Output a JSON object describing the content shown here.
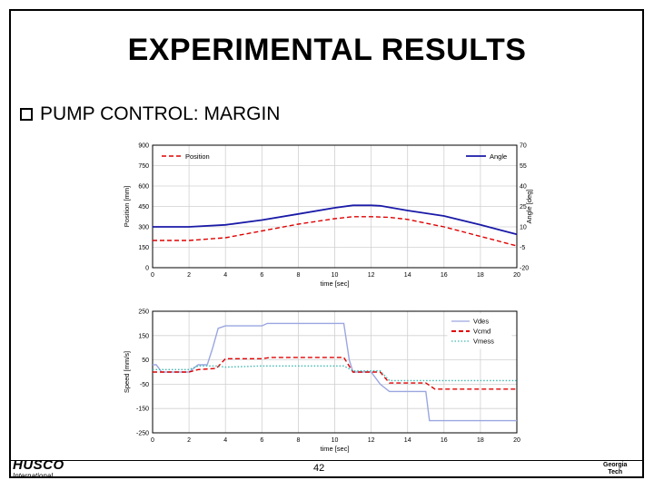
{
  "slide": {
    "title": "EXPERIMENTAL RESULTS",
    "bullet": "PUMP CONTROL: MARGIN",
    "page_number": "42",
    "logo_left_brand": "HUSCO",
    "logo_left_sub": "International",
    "logo_right_line1": "Georgia",
    "logo_right_line2": "Tech"
  },
  "colors": {
    "red_dashed": "#e00000",
    "blue": "#1a1aa8",
    "light_blue": "#9aa6e0",
    "cyan": "#40b8b0",
    "grid": "#d0d0d0"
  },
  "chart_data": [
    {
      "type": "line",
      "xlabel": "time [sec]",
      "ylabel": "Position [mm]",
      "y2label": "Angle [deg]",
      "xlim": [
        0,
        20
      ],
      "ylim": [
        0,
        900
      ],
      "y2lim": [
        -20,
        70
      ],
      "xticks": [
        "0",
        "2",
        "4",
        "6",
        "8",
        "10",
        "12",
        "14",
        "16",
        "18",
        "20"
      ],
      "yticks": [
        "0",
        "150",
        "300",
        "450",
        "600",
        "750",
        "900"
      ],
      "y2ticks": [
        "-20",
        "-5",
        "10",
        "25",
        "40",
        "55",
        "70"
      ],
      "grid": true,
      "series": [
        {
          "name": "Position",
          "axis": "left",
          "style": "dashed",
          "color": "#e00000",
          "x": [
            0,
            2,
            4,
            6,
            8,
            10,
            11,
            12,
            13,
            14,
            16,
            18,
            20
          ],
          "y": [
            200,
            200,
            220,
            270,
            320,
            360,
            375,
            375,
            370,
            355,
            300,
            230,
            160
          ]
        },
        {
          "name": "Angle",
          "axis": "right",
          "style": "solid",
          "color": "#1a1aa8",
          "x": [
            0,
            2,
            4,
            6,
            8,
            10,
            11,
            12,
            12.5,
            14,
            16,
            18,
            20
          ],
          "y": [
            10,
            10,
            11.5,
            15,
            19.5,
            24,
            25.8,
            25.8,
            25.5,
            22,
            18,
            11.5,
            4.5
          ]
        }
      ]
    },
    {
      "type": "line",
      "xlabel": "time [sec]",
      "ylabel": "Speed [mm/s]",
      "xlim": [
        0,
        20
      ],
      "ylim": [
        -250,
        250
      ],
      "xticks": [
        "0",
        "2",
        "4",
        "6",
        "8",
        "10",
        "12",
        "14",
        "16",
        "18",
        "20"
      ],
      "yticks": [
        "250",
        "150",
        "50",
        "-50",
        "-150",
        "-250"
      ],
      "grid": true,
      "series": [
        {
          "name": "Vdes",
          "style": "solid",
          "color": "#9aa6e0",
          "x": [
            0,
            0.2,
            0.5,
            2.0,
            2.5,
            3.0,
            3.3,
            3.6,
            4.0,
            6.0,
            6.3,
            10.5,
            10.8,
            11.0,
            12.0,
            12.5,
            13.0,
            15.0,
            15.2,
            20
          ],
          "y": [
            30,
            30,
            0,
            0,
            30,
            30,
            100,
            180,
            190,
            190,
            200,
            200,
            50,
            0,
            0,
            -50,
            -80,
            -80,
            -200,
            -200
          ]
        },
        {
          "name": "Vcmd",
          "style": "dashed",
          "color": "#e00000",
          "x": [
            0,
            0.5,
            2.0,
            2.5,
            3.5,
            4.0,
            6.0,
            6.5,
            10.5,
            11.0,
            12.5,
            13.0,
            15.0,
            15.5,
            17.0,
            20
          ],
          "y": [
            0,
            0,
            0,
            10,
            15,
            55,
            55,
            60,
            60,
            0,
            0,
            -45,
            -45,
            -70,
            -70,
            -70
          ]
        },
        {
          "name": "Vmess",
          "style": "dotted",
          "color": "#40b8b0",
          "x": [
            0,
            2.0,
            2.5,
            3.5,
            4.0,
            6.0,
            10.5,
            11.0,
            12.5,
            13.0,
            20
          ],
          "y": [
            10,
            10,
            25,
            25,
            20,
            25,
            25,
            5,
            5,
            -35,
            -35
          ]
        }
      ]
    }
  ]
}
